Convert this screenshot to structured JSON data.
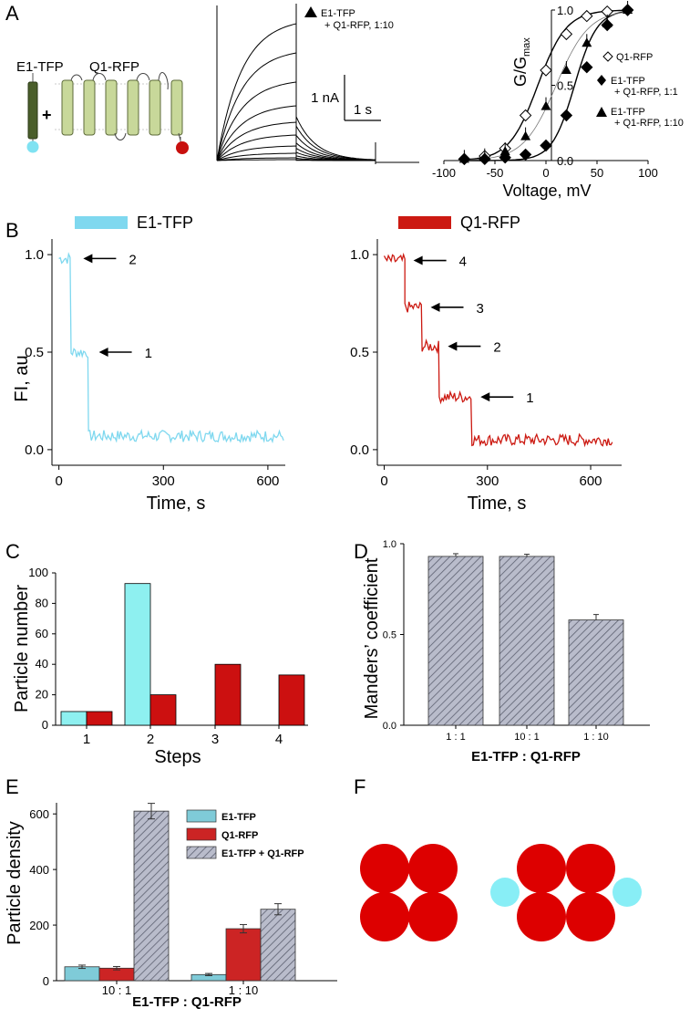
{
  "panel_labels": {
    "a": "A",
    "b": "B",
    "c": "C",
    "d": "D",
    "e": "E",
    "f": "F"
  },
  "panel_a": {
    "e1_label": "E1-TFP",
    "q1_label": "Q1-RFP",
    "plus": "+",
    "trace_legend_line1": "E1-TFP",
    "trace_legend_line2": "+ Q1-RFP, 1:10",
    "scale_current": "1 nA",
    "scale_time": "1 s",
    "gv_legend": [
      "Q1-RFP",
      "E1-TFP",
      "+ Q1-RFP, 1:1",
      "E1-TFP",
      "+ Q1-RFP, 1:10"
    ],
    "colors": {
      "e1_body": "#4a5e2a",
      "q1_body": "#c8d89a",
      "tfp": "#7fe2f2",
      "rfp": "#c8100e"
    }
  },
  "panel_b": {
    "legend_e1": "E1-TFP",
    "legend_q1": "Q1-RFP",
    "step_labels_left": [
      "2",
      "1"
    ],
    "step_labels_right": [
      "4",
      "3",
      "2",
      "1"
    ],
    "colors": {
      "tfp": "#7fd8ef",
      "rfp": "#cc1a12"
    }
  },
  "panel_c": {
    "colors": {
      "tfp": "#8ef0f0",
      "rfp": "#cc1010"
    }
  },
  "panel_e": {
    "legend": [
      "E1-TFP",
      "Q1-RFP",
      "E1-TFP + Q1-RFP"
    ],
    "colors": {
      "tfp": "#7fcbd8",
      "rfp": "#cc2424",
      "hatch": "#b0b4c8"
    }
  },
  "panel_f": {
    "colors": {
      "rfp": "#dd0000",
      "tfp": "#88eef6"
    }
  },
  "chart_data": [
    {
      "id": "A-gv",
      "type": "scatter",
      "xlabel": "Voltage, mV",
      "ylabel": "G/G",
      "ylabel_sub": "max",
      "xlim": [
        -100,
        100
      ],
      "ylim": [
        0,
        1
      ],
      "xticks": [
        -100,
        -50,
        0,
        50,
        100
      ],
      "yticks": [
        0.0,
        0.5,
        1.0
      ],
      "series": [
        {
          "name": "Q1-RFP",
          "marker": "open-diamond",
          "x": [
            -80,
            -60,
            -40,
            -20,
            0,
            20,
            40,
            60,
            80
          ],
          "y": [
            0.01,
            0.03,
            0.08,
            0.3,
            0.6,
            0.84,
            0.96,
            0.99,
            1.0
          ]
        },
        {
          "name": "E1-TFP + Q1-RFP, 1:1",
          "marker": "filled-diamond",
          "x": [
            -80,
            -60,
            -40,
            -20,
            0,
            20,
            40,
            60,
            80
          ],
          "y": [
            0.01,
            0.01,
            0.02,
            0.04,
            0.1,
            0.3,
            0.62,
            0.9,
            1.0
          ]
        },
        {
          "name": "E1-TFP + Q1-RFP, 1:10",
          "marker": "filled-triangle",
          "x": [
            -80,
            -60,
            -40,
            -20,
            0,
            20,
            40,
            60,
            80
          ],
          "y": [
            0.01,
            0.02,
            0.06,
            0.16,
            0.36,
            0.6,
            0.78,
            0.91,
            1.0
          ]
        }
      ]
    },
    {
      "id": "B-left",
      "type": "line",
      "xlabel": "Time, s",
      "ylabel": "FI, au",
      "xlim": [
        -20,
        650
      ],
      "ylim": [
        -0.08,
        1.08
      ],
      "xticks": [
        0,
        300,
        600
      ],
      "yticks": [
        0.0,
        0.5,
        1.0
      ],
      "series": [
        {
          "name": "E1-TFP",
          "steps": [
            {
              "x_end": 35,
              "y": 0.98
            },
            {
              "x_end": 85,
              "y": 0.5
            },
            {
              "x_end": 645,
              "y": 0.07
            }
          ]
        }
      ]
    },
    {
      "id": "B-right",
      "type": "line",
      "xlabel": "Time, s",
      "ylabel": "",
      "xlim": [
        -20,
        690
      ],
      "ylim": [
        -0.08,
        1.08
      ],
      "xticks": [
        0,
        300,
        600
      ],
      "yticks": [
        0.0,
        0.5,
        1.0
      ],
      "series": [
        {
          "name": "Q1-RFP",
          "steps": [
            {
              "x_end": 60,
              "y": 0.97
            },
            {
              "x_end": 110,
              "y": 0.73
            },
            {
              "x_end": 160,
              "y": 0.53
            },
            {
              "x_end": 255,
              "y": 0.27
            },
            {
              "x_end": 665,
              "y": 0.05
            }
          ]
        }
      ]
    },
    {
      "id": "C",
      "type": "bar",
      "xlabel": "Steps",
      "ylabel": "Particle number",
      "categories": [
        "1",
        "2",
        "3",
        "4"
      ],
      "ylim": [
        0,
        100
      ],
      "yticks": [
        0,
        20,
        40,
        60,
        80,
        100
      ],
      "series": [
        {
          "name": "E1-TFP",
          "values": [
            9,
            93,
            0,
            0
          ]
        },
        {
          "name": "Q1-RFP",
          "values": [
            9,
            20,
            40,
            33
          ]
        }
      ]
    },
    {
      "id": "D",
      "type": "bar",
      "xlabel": "E1-TFP  :  Q1-RFP",
      "ylabel": "Manders’ coefficient",
      "categories": [
        "1 : 1",
        "10 : 1",
        "1 : 10"
      ],
      "values": [
        0.93,
        0.93,
        0.58
      ],
      "errors": [
        0.015,
        0.012,
        0.03
      ],
      "ylim": [
        0,
        1
      ],
      "yticks": [
        0.0,
        0.5,
        1.0
      ]
    },
    {
      "id": "E",
      "type": "bar",
      "xlabel": "E1-TFP  :  Q1-RFP",
      "ylabel": "Particle density",
      "categories": [
        "10 : 1",
        "1 : 10"
      ],
      "ylim": [
        0,
        640
      ],
      "yticks": [
        0,
        200,
        400,
        600
      ],
      "series": [
        {
          "name": "E1-TFP",
          "values": [
            50,
            22
          ],
          "errors": [
            6,
            4
          ]
        },
        {
          "name": "Q1-RFP",
          "values": [
            45,
            187
          ],
          "errors": [
            6,
            15
          ]
        },
        {
          "name": "E1-TFP + Q1-RFP",
          "values": [
            610,
            257
          ],
          "errors": [
            28,
            20
          ]
        }
      ]
    }
  ]
}
